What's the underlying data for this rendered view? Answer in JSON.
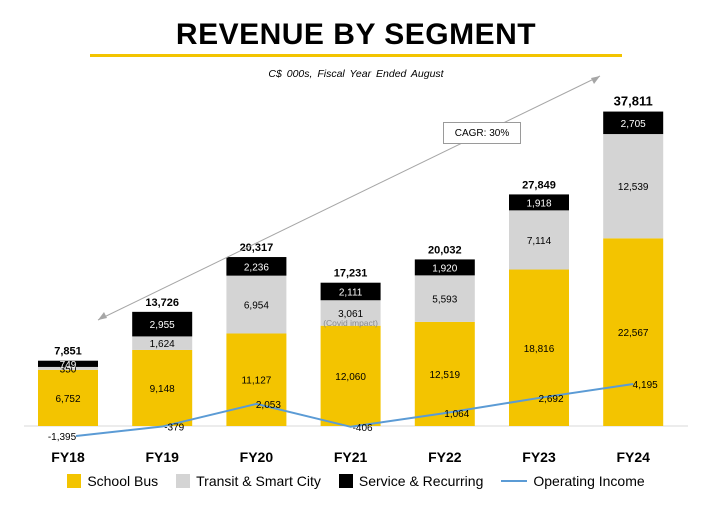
{
  "page": {
    "title": "REVENUE BY SEGMENT",
    "subtitle": "C$ 000s,     Fiscal Year Ended August",
    "annotation_cagr": "CAGR: 30%",
    "annotation_covid": "(Covid impact)"
  },
  "colors": {
    "school_bus": "#f3c400",
    "transit": "#d4d4d4",
    "service": "#000000",
    "operating": "#5b9bd5",
    "accent_line": "#f3c400",
    "arrow": "#a6a6a6"
  },
  "chart_data": {
    "type": "bar",
    "stacked": true,
    "title": "REVENUE BY SEGMENT",
    "subtitle": "C$ 000s, Fiscal Year Ended August",
    "categories": [
      "FY18",
      "FY19",
      "FY20",
      "FY21",
      "FY22",
      "FY23",
      "FY24"
    ],
    "series": [
      {
        "name": "School Bus",
        "values": [
          6752,
          9148,
          11127,
          12060,
          12519,
          18816,
          22567
        ]
      },
      {
        "name": "Transit & Smart City",
        "values": [
          350,
          1624,
          6954,
          3061,
          5593,
          7114,
          12539
        ]
      },
      {
        "name": "Service & Recurring",
        "values": [
          749,
          2955,
          2236,
          2111,
          1920,
          1918,
          2705
        ]
      }
    ],
    "value_labels": {
      "School Bus": [
        "6,752",
        "9,148",
        "11,127",
        "12,060",
        "12,519",
        "18,816",
        "22,567"
      ],
      "Transit & Smart City": [
        "350",
        "1,624",
        "6,954",
        "3,061",
        "5,593",
        "7,114",
        "12,539"
      ],
      "Service & Recurring": [
        "749",
        "2,955",
        "2,236",
        "2,111",
        "1,920",
        "1,918",
        "2,705"
      ]
    },
    "totals": [
      7851,
      13726,
      20317,
      17231,
      20032,
      27849,
      37811
    ],
    "total_labels": [
      "7,851",
      "13,726",
      "20,317",
      "17,231",
      "20,032",
      "27,849",
      "37,811"
    ],
    "line_series": {
      "name": "Operating Income",
      "values": [
        -1395,
        -379,
        2053,
        -406,
        1064,
        2692,
        4195
      ],
      "labels": [
        "-1,395",
        "-379",
        "2,053",
        "-406",
        "1,064",
        "2,692",
        "4,195"
      ]
    },
    "ylim": [
      -1600,
      40000
    ],
    "legend": [
      "School Bus",
      "Transit & Smart City",
      "Service & Recurring",
      "Operating Income"
    ],
    "legend_position": "bottom",
    "grid": false
  }
}
